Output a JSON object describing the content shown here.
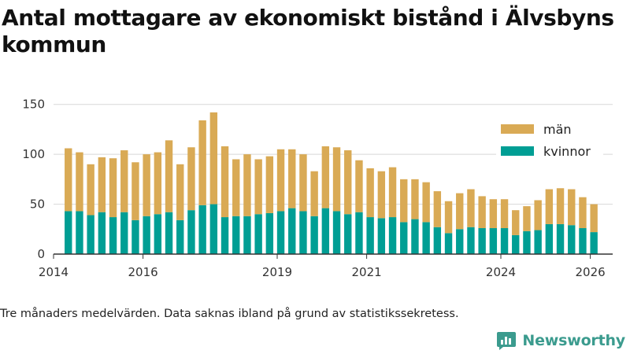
{
  "title": "Antal mottagare av ekonomiskt bistånd i Älvsbyns kommun",
  "footnote": "Tre månaders medelvärden. Data saknas ibland på grund av statistikssekretess.",
  "brand": {
    "name": "Newsworthy",
    "icon": "newsworthy-logo-icon"
  },
  "colors": {
    "man": "#d9aa55",
    "kvinnor": "#009e94",
    "grid": "#d8d8d8",
    "axis": "#333333"
  },
  "chart_data": {
    "type": "bar",
    "stacked": true,
    "title": "Antal mottagare av ekonomiskt bistånd i Älvsbyns kommun",
    "xlabel": "",
    "ylabel": "",
    "ylim": [
      0,
      160
    ],
    "yticks": [
      0,
      50,
      100,
      150
    ],
    "xlim": [
      2014.0,
      2026.5
    ],
    "xticks": [
      2014,
      2016,
      2019,
      2021,
      2024,
      2026
    ],
    "legend_position": "top-right",
    "x": [
      2014.33,
      2014.58,
      2014.83,
      2015.08,
      2015.33,
      2015.58,
      2015.83,
      2016.08,
      2016.33,
      2016.58,
      2016.83,
      2017.08,
      2017.33,
      2017.58,
      2017.83,
      2018.08,
      2018.33,
      2018.58,
      2018.83,
      2019.08,
      2019.33,
      2019.58,
      2019.83,
      2020.08,
      2020.33,
      2020.58,
      2020.83,
      2021.08,
      2021.33,
      2021.58,
      2021.83,
      2022.08,
      2022.33,
      2022.58,
      2022.83,
      2023.08,
      2023.33,
      2023.58,
      2023.83,
      2024.08,
      2024.33,
      2024.58,
      2024.83,
      2025.08,
      2025.33,
      2025.58,
      2025.83,
      2026.08
    ],
    "series": [
      {
        "name": "kvinnor",
        "color": "#009e94",
        "values": [
          43,
          43,
          39,
          42,
          37,
          42,
          34,
          38,
          40,
          42,
          34,
          44,
          49,
          50,
          37,
          38,
          38,
          40,
          41,
          43,
          46,
          43,
          38,
          46,
          43,
          40,
          42,
          37,
          36,
          37,
          32,
          35,
          32,
          27,
          21,
          25,
          27,
          26,
          26,
          26,
          19,
          23,
          24,
          30,
          30,
          29,
          26,
          22
        ]
      },
      {
        "name": "män",
        "color": "#d9aa55",
        "values": [
          63,
          59,
          51,
          55,
          59,
          62,
          58,
          62,
          62,
          72,
          56,
          63,
          85,
          92,
          71,
          57,
          62,
          55,
          57,
          62,
          59,
          57,
          45,
          62,
          64,
          64,
          52,
          49,
          47,
          50,
          43,
          40,
          40,
          36,
          32,
          36,
          38,
          32,
          29,
          29,
          25,
          25,
          30,
          35,
          36,
          36,
          31,
          28
        ]
      }
    ]
  }
}
